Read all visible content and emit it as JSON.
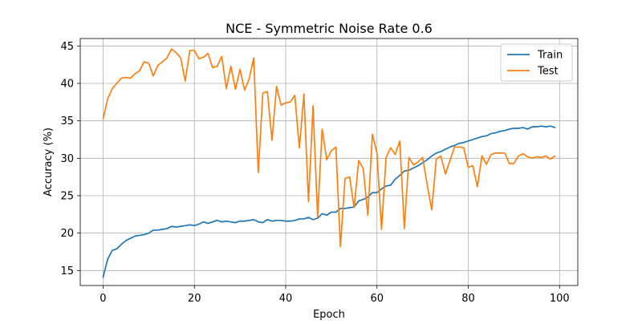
{
  "chart_data": {
    "type": "line",
    "title": "NCE - Symmetric Noise Rate 0.6",
    "xlabel": "Epoch",
    "ylabel": "Accuracy (%)",
    "xlim": [
      -5,
      104
    ],
    "ylim": [
      13.0,
      46.0
    ],
    "xticks": [
      0,
      20,
      40,
      60,
      80,
      100
    ],
    "yticks": [
      15,
      20,
      25,
      30,
      35,
      40,
      45
    ],
    "grid": true,
    "legend_position": "top-right",
    "x": [
      0,
      1,
      2,
      3,
      4,
      5,
      6,
      7,
      8,
      9,
      10,
      11,
      12,
      13,
      14,
      15,
      16,
      17,
      18,
      19,
      20,
      21,
      22,
      23,
      24,
      25,
      26,
      27,
      28,
      29,
      30,
      31,
      32,
      33,
      34,
      35,
      36,
      37,
      38,
      39,
      40,
      41,
      42,
      43,
      44,
      45,
      46,
      47,
      48,
      49,
      50,
      51,
      52,
      53,
      54,
      55,
      56,
      57,
      58,
      59,
      60,
      61,
      62,
      63,
      64,
      65,
      66,
      67,
      68,
      69,
      70,
      71,
      72,
      73,
      74,
      75,
      76,
      77,
      78,
      79,
      80,
      81,
      82,
      83,
      84,
      85,
      86,
      87,
      88,
      89,
      90,
      91,
      92,
      93,
      94,
      95,
      96,
      97,
      98,
      99
    ],
    "series": [
      {
        "name": "Train",
        "color": "#1f77b4",
        "values": [
          14.1,
          16.5,
          17.7,
          17.9,
          18.5,
          19.0,
          19.3,
          19.6,
          19.7,
          19.8,
          20.0,
          20.4,
          20.4,
          20.5,
          20.6,
          20.9,
          20.8,
          20.9,
          21.0,
          21.1,
          21.0,
          21.2,
          21.5,
          21.3,
          21.5,
          21.7,
          21.5,
          21.6,
          21.5,
          21.4,
          21.6,
          21.6,
          21.7,
          21.8,
          21.5,
          21.4,
          21.8,
          21.6,
          21.7,
          21.7,
          21.6,
          21.6,
          21.7,
          21.9,
          21.9,
          22.1,
          21.8,
          22.0,
          22.6,
          22.4,
          22.8,
          22.8,
          23.3,
          23.3,
          23.4,
          23.5,
          24.3,
          24.5,
          24.8,
          25.4,
          25.4,
          25.9,
          26.3,
          26.4,
          27.2,
          27.7,
          28.3,
          28.4,
          28.7,
          29.0,
          29.4,
          29.8,
          30.3,
          30.7,
          30.9,
          31.2,
          31.5,
          31.7,
          32.0,
          32.1,
          32.3,
          32.5,
          32.7,
          32.9,
          33.0,
          33.3,
          33.4,
          33.6,
          33.7,
          33.9,
          34.0,
          34.0,
          34.1,
          33.9,
          34.2,
          34.2,
          34.3,
          34.2,
          34.3,
          34.1
        ]
      },
      {
        "name": "Test",
        "color": "#ff7f0e",
        "values": [
          35.3,
          37.9,
          39.3,
          40.0,
          40.7,
          40.8,
          40.7,
          41.3,
          41.7,
          42.9,
          42.7,
          41.0,
          42.4,
          42.9,
          43.4,
          44.6,
          44.1,
          43.4,
          40.3,
          44.4,
          44.4,
          43.3,
          43.5,
          44.0,
          42.1,
          42.3,
          43.6,
          39.3,
          42.3,
          39.2,
          41.9,
          39.1,
          40.6,
          43.4,
          28.1,
          38.7,
          38.9,
          32.4,
          39.6,
          37.1,
          37.4,
          37.5,
          38.4,
          31.4,
          38.6,
          24.2,
          37.0,
          22.2,
          33.9,
          29.8,
          31.0,
          31.5,
          18.2,
          27.3,
          27.5,
          23.4,
          29.7,
          28.6,
          22.4,
          33.2,
          30.7,
          20.5,
          30.1,
          31.4,
          30.5,
          32.3,
          20.6,
          30.1,
          29.1,
          29.5,
          30.1,
          26.5,
          23.1,
          29.9,
          30.3,
          27.9,
          29.7,
          31.5,
          31.5,
          31.4,
          28.8,
          29.0,
          26.2,
          30.3,
          29.2,
          30.5,
          30.7,
          30.7,
          30.7,
          29.3,
          29.3,
          30.3,
          30.6,
          30.2,
          30.0,
          30.2,
          30.1,
          30.3,
          29.9,
          30.3
        ]
      }
    ]
  }
}
